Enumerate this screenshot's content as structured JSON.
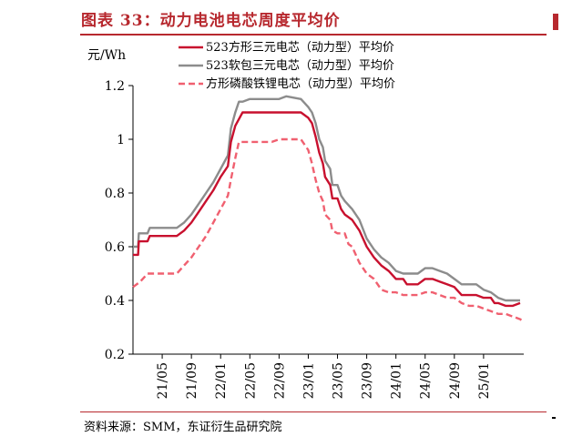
{
  "header": {
    "title": "图表 33：动力电池电芯周度平均价"
  },
  "footer": {
    "source": "资料来源：SMM，东证衍生品研究院"
  },
  "chart_data": {
    "type": "line",
    "title": "图表 33：动力电池电芯周度平均价",
    "ylabel": "元/Wh",
    "xlabel": "",
    "ylim": [
      0.2,
      1.2
    ],
    "yticks": [
      0.2,
      0.4,
      0.6,
      0.8,
      1,
      1.2
    ],
    "ytick_labels": [
      "0.2",
      "0.4",
      "0.6",
      "0.8",
      "1",
      "1.2"
    ],
    "xlim": [
      0,
      53.5
    ],
    "xtick_positions": [
      4,
      8,
      12,
      16,
      20,
      24,
      28,
      32,
      36,
      40,
      44,
      48
    ],
    "xtick_labels": [
      "21/05",
      "21/09",
      "22/01",
      "22/05",
      "22/09",
      "23/01",
      "23/05",
      "23/09",
      "24/01",
      "24/05",
      "24/09",
      "25/01"
    ],
    "legend_position": "top-left",
    "series": [
      {
        "name": "523方形三元电芯（动力型）平均价",
        "color": "#c8102e",
        "dash": "solid",
        "points": [
          [
            0,
            0.57
          ],
          [
            0.7,
            0.57
          ],
          [
            0.8,
            0.62
          ],
          [
            1,
            0.62
          ],
          [
            2,
            0.62
          ],
          [
            2.3,
            0.64
          ],
          [
            3,
            0.64
          ],
          [
            6,
            0.64
          ],
          [
            7,
            0.66
          ],
          [
            8,
            0.69
          ],
          [
            9,
            0.73
          ],
          [
            10,
            0.77
          ],
          [
            11,
            0.81
          ],
          [
            12,
            0.86
          ],
          [
            13,
            0.9
          ],
          [
            13.4,
            0.99
          ],
          [
            14,
            1.05
          ],
          [
            15,
            1.1
          ],
          [
            16,
            1.1
          ],
          [
            20,
            1.1
          ],
          [
            23,
            1.1
          ],
          [
            24,
            1.08
          ],
          [
            24.5,
            1.06
          ],
          [
            25,
            1.01
          ],
          [
            25.5,
            0.95
          ],
          [
            26,
            0.91
          ],
          [
            26.3,
            0.86
          ],
          [
            27,
            0.83
          ],
          [
            27.3,
            0.78
          ],
          [
            28,
            0.78
          ],
          [
            28.5,
            0.74
          ],
          [
            29,
            0.72
          ],
          [
            30,
            0.7
          ],
          [
            31,
            0.66
          ],
          [
            32,
            0.6
          ],
          [
            33,
            0.56
          ],
          [
            34,
            0.53
          ],
          [
            35,
            0.51
          ],
          [
            36,
            0.48
          ],
          [
            37,
            0.48
          ],
          [
            37.5,
            0.46
          ],
          [
            38,
            0.46
          ],
          [
            39,
            0.46
          ],
          [
            40,
            0.48
          ],
          [
            41,
            0.48
          ],
          [
            42,
            0.47
          ],
          [
            43,
            0.46
          ],
          [
            44,
            0.45
          ],
          [
            45,
            0.42
          ],
          [
            47,
            0.42
          ],
          [
            48,
            0.41
          ],
          [
            49,
            0.41
          ],
          [
            49.5,
            0.39
          ],
          [
            50,
            0.39
          ],
          [
            51,
            0.38
          ],
          [
            52,
            0.38
          ],
          [
            53,
            0.39
          ]
        ]
      },
      {
        "name": "523软包三元电芯（动力型）平均价",
        "color": "#8c8c8c",
        "dash": "solid",
        "points": [
          [
            0,
            0.6
          ],
          [
            0.7,
            0.6
          ],
          [
            0.8,
            0.65
          ],
          [
            1,
            0.65
          ],
          [
            2,
            0.65
          ],
          [
            2.3,
            0.67
          ],
          [
            3,
            0.67
          ],
          [
            6,
            0.67
          ],
          [
            7,
            0.69
          ],
          [
            8,
            0.72
          ],
          [
            9,
            0.76
          ],
          [
            10,
            0.8
          ],
          [
            11,
            0.84
          ],
          [
            12,
            0.89
          ],
          [
            13,
            0.94
          ],
          [
            13.4,
            1.04
          ],
          [
            14,
            1.1
          ],
          [
            14.5,
            1.14
          ],
          [
            15,
            1.14
          ],
          [
            16,
            1.15
          ],
          [
            20,
            1.15
          ],
          [
            21,
            1.16
          ],
          [
            23,
            1.15
          ],
          [
            24,
            1.12
          ],
          [
            24.5,
            1.1
          ],
          [
            25,
            1.06
          ],
          [
            25.5,
            1.0
          ],
          [
            26,
            0.97
          ],
          [
            26.3,
            0.92
          ],
          [
            27,
            0.89
          ],
          [
            27.3,
            0.83
          ],
          [
            28,
            0.83
          ],
          [
            28.5,
            0.79
          ],
          [
            29,
            0.77
          ],
          [
            30,
            0.74
          ],
          [
            31,
            0.7
          ],
          [
            32,
            0.63
          ],
          [
            33,
            0.59
          ],
          [
            34,
            0.56
          ],
          [
            35,
            0.54
          ],
          [
            36,
            0.51
          ],
          [
            37,
            0.5
          ],
          [
            38,
            0.5
          ],
          [
            39,
            0.5
          ],
          [
            40,
            0.52
          ],
          [
            41,
            0.52
          ],
          [
            42,
            0.51
          ],
          [
            43,
            0.5
          ],
          [
            44,
            0.48
          ],
          [
            45,
            0.46
          ],
          [
            47,
            0.46
          ],
          [
            48,
            0.44
          ],
          [
            49,
            0.43
          ],
          [
            49.5,
            0.42
          ],
          [
            50,
            0.41
          ],
          [
            51,
            0.4
          ],
          [
            53,
            0.4
          ]
        ]
      },
      {
        "name": "方形磷酸铁锂电芯（动力型）平均价",
        "color": "#f06070",
        "dash": "dashed",
        "points": [
          [
            0,
            0.45
          ],
          [
            1,
            0.47
          ],
          [
            2,
            0.5
          ],
          [
            6,
            0.5
          ],
          [
            7,
            0.53
          ],
          [
            8,
            0.56
          ],
          [
            9,
            0.6
          ],
          [
            10,
            0.64
          ],
          [
            11,
            0.69
          ],
          [
            12,
            0.74
          ],
          [
            13,
            0.79
          ],
          [
            13.4,
            0.85
          ],
          [
            14,
            0.93
          ],
          [
            14.5,
            0.99
          ],
          [
            16,
            0.99
          ],
          [
            19,
            0.99
          ],
          [
            20,
            1.0
          ],
          [
            22,
            1.0
          ],
          [
            23,
            1.0
          ],
          [
            24,
            0.96
          ],
          [
            24.5,
            0.91
          ],
          [
            25,
            0.85
          ],
          [
            25.5,
            0.8
          ],
          [
            26,
            0.77
          ],
          [
            26.3,
            0.72
          ],
          [
            27,
            0.7
          ],
          [
            27.3,
            0.66
          ],
          [
            28,
            0.65
          ],
          [
            29,
            0.65
          ],
          [
            29.5,
            0.61
          ],
          [
            30,
            0.6
          ],
          [
            31,
            0.54
          ],
          [
            32,
            0.5
          ],
          [
            33,
            0.48
          ],
          [
            34,
            0.44
          ],
          [
            35,
            0.43
          ],
          [
            36,
            0.43
          ],
          [
            37,
            0.42
          ],
          [
            38,
            0.42
          ],
          [
            39,
            0.42
          ],
          [
            40,
            0.43
          ],
          [
            41,
            0.43
          ],
          [
            42,
            0.42
          ],
          [
            43,
            0.41
          ],
          [
            44,
            0.41
          ],
          [
            45,
            0.39
          ],
          [
            46,
            0.38
          ],
          [
            47,
            0.38
          ],
          [
            48,
            0.37
          ],
          [
            49,
            0.36
          ],
          [
            50,
            0.35
          ],
          [
            51,
            0.35
          ],
          [
            52,
            0.34
          ],
          [
            53,
            0.33
          ],
          [
            53.5,
            0.32
          ]
        ]
      }
    ]
  }
}
